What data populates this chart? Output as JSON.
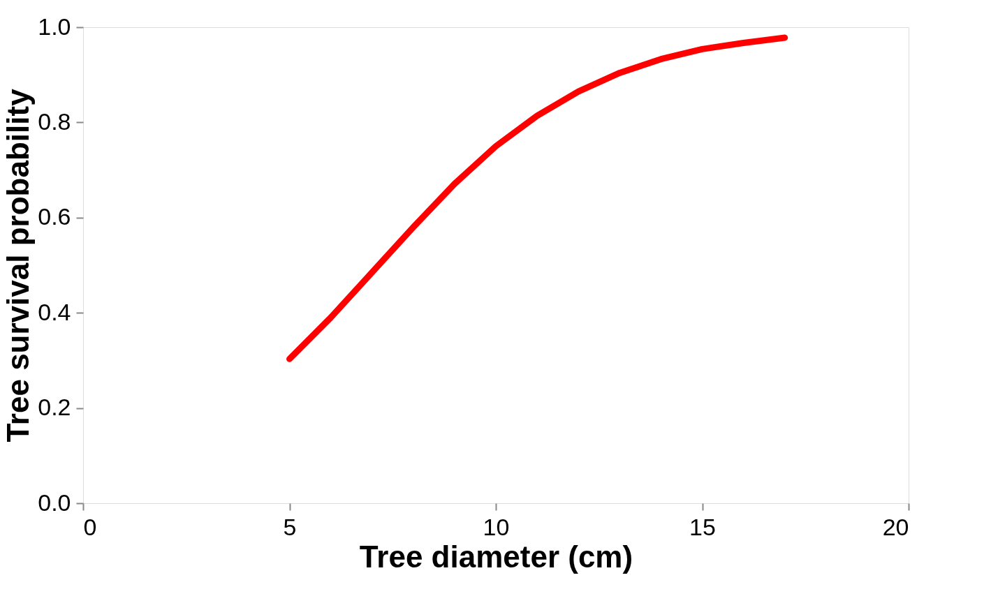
{
  "chart_data": {
    "type": "line",
    "xlabel": "Tree diameter (cm)",
    "ylabel": "Tree survival probability",
    "x": [
      5,
      6,
      7,
      8,
      9,
      10,
      11,
      12,
      13,
      14,
      15,
      16,
      17
    ],
    "series": [
      {
        "color": "#ff0000",
        "values": [
          0.303,
          0.39,
          0.485,
          0.58,
          0.671,
          0.75,
          0.814,
          0.865,
          0.904,
          0.933,
          0.954,
          0.967,
          0.978
        ]
      }
    ],
    "xlim": [
      0,
      20
    ],
    "xticks": [
      0,
      5,
      10,
      15,
      20
    ],
    "ylim": [
      0,
      1
    ],
    "yticks": [
      {
        "value": 0,
        "label": "0.0"
      },
      {
        "value": 0.2,
        "label": "0.2"
      },
      {
        "value": 0.4,
        "label": "0.4"
      },
      {
        "value": 0.6,
        "label": "0.6"
      },
      {
        "value": 0.8,
        "label": "0.8"
      },
      {
        "value": 1,
        "label": "1.0"
      }
    ],
    "grid": false,
    "legend": false,
    "line_style": "solid"
  }
}
